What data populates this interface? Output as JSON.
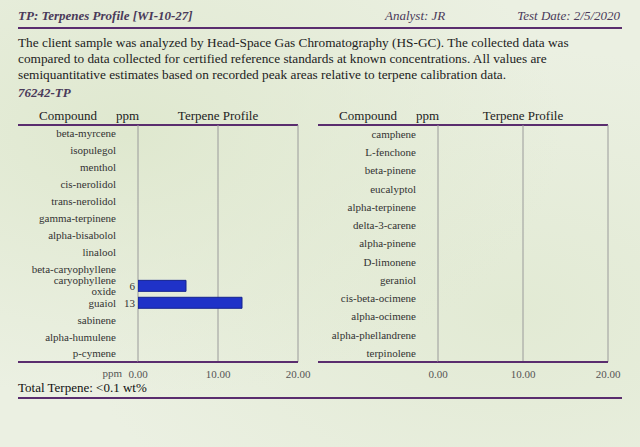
{
  "header": {
    "title": "TP: Terpenes Profile [WI-10-27]",
    "analyst": "Analyst: JR",
    "test_date": "Test Date: 2/5/2020"
  },
  "description": "The client sample was analyzed by Head-Space Gas Chromatography (HS-GC). The collected data was compared to data collected for certified reference standards at known concentrations. All values are semiquantitative estimates based on recorded peak areas relative to terpene calibration data.",
  "sample_id": "76242-TP",
  "columns": [
    "Compound",
    "ppm",
    "Terpene Profile"
  ],
  "chart_data": [
    {
      "type": "bar",
      "orientation": "horizontal",
      "categories": [
        "beta-myrcene",
        "isopulegol",
        "menthol",
        "cis-nerolidol",
        "trans-nerolidol",
        "gamma-terpinene",
        "alpha-bisabolol",
        "linalool",
        "beta-caryophyllene",
        "caryophyllene oxide",
        "guaiol",
        "sabinene",
        "alpha-humulene",
        "p-cymene"
      ],
      "values": [
        null,
        null,
        null,
        null,
        null,
        null,
        null,
        null,
        null,
        6,
        13,
        null,
        null,
        null
      ],
      "color": "#1f32c8",
      "xlabel": "ppm",
      "xlim": [
        0,
        20
      ],
      "xticks": [
        {
          "value": 0,
          "label": "0.00"
        },
        {
          "value": 10,
          "label": "10.00"
        },
        {
          "value": 20,
          "label": "20.00"
        }
      ],
      "grid": true,
      "data_labels": true
    },
    {
      "type": "bar",
      "orientation": "horizontal",
      "categories": [
        "camphene",
        "L-fenchone",
        "beta-pinene",
        "eucalyptol",
        "alpha-terpinene",
        "delta-3-carene",
        "alpha-pinene",
        "D-limonene",
        "geraniol",
        "cis-beta-ocimene",
        "alpha-ocimene",
        "alpha-phellandrene",
        "terpinolene"
      ],
      "values": [
        null,
        null,
        null,
        null,
        null,
        null,
        null,
        null,
        null,
        null,
        null,
        null,
        null
      ],
      "color": "#1f32c8",
      "xlim": [
        0,
        20
      ],
      "xticks": [
        {
          "value": 0,
          "label": "0.00"
        },
        {
          "value": 10,
          "label": "10.00"
        },
        {
          "value": 20,
          "label": "20.00"
        }
      ],
      "grid": true,
      "data_labels": true
    }
  ],
  "footer": "Total Terpene: <0.1 wt%"
}
